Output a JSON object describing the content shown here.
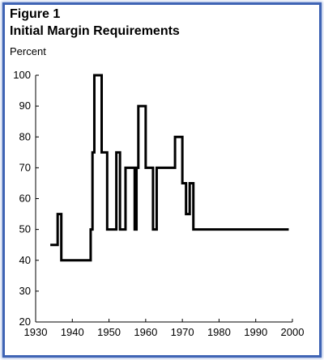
{
  "figure": {
    "label": "Figure 1",
    "title": "Initial Margin Requirements",
    "unit": "Percent"
  },
  "colors": {
    "frame": "#3f64b4",
    "line": "#000000"
  },
  "chart_data": {
    "type": "line",
    "step": true,
    "title": "Initial Margin Requirements",
    "ylabel": "Percent",
    "xlabel": "",
    "xlim": [
      1930,
      2000
    ],
    "ylim": [
      20,
      100
    ],
    "xticks": [
      1930,
      1940,
      1950,
      1960,
      1970,
      1980,
      1990,
      2000
    ],
    "yticks": [
      20,
      30,
      40,
      50,
      60,
      70,
      80,
      90,
      100
    ],
    "grid": false,
    "legend": "none",
    "series": [
      {
        "x": [
          1934,
          1936,
          1937,
          1945,
          1945.5,
          1946,
          1948,
          1949.5,
          1952,
          1953,
          1954.5,
          1955,
          1957,
          1957.5,
          1958,
          1960,
          1962,
          1963,
          1968,
          1970,
          1971,
          1972,
          1973,
          1999
        ],
        "values": [
          45,
          55,
          40,
          50,
          75,
          100,
          75,
          50,
          75,
          50,
          70,
          70,
          50,
          70,
          90,
          70,
          50,
          70,
          80,
          65,
          55,
          65,
          50,
          50
        ]
      }
    ]
  }
}
